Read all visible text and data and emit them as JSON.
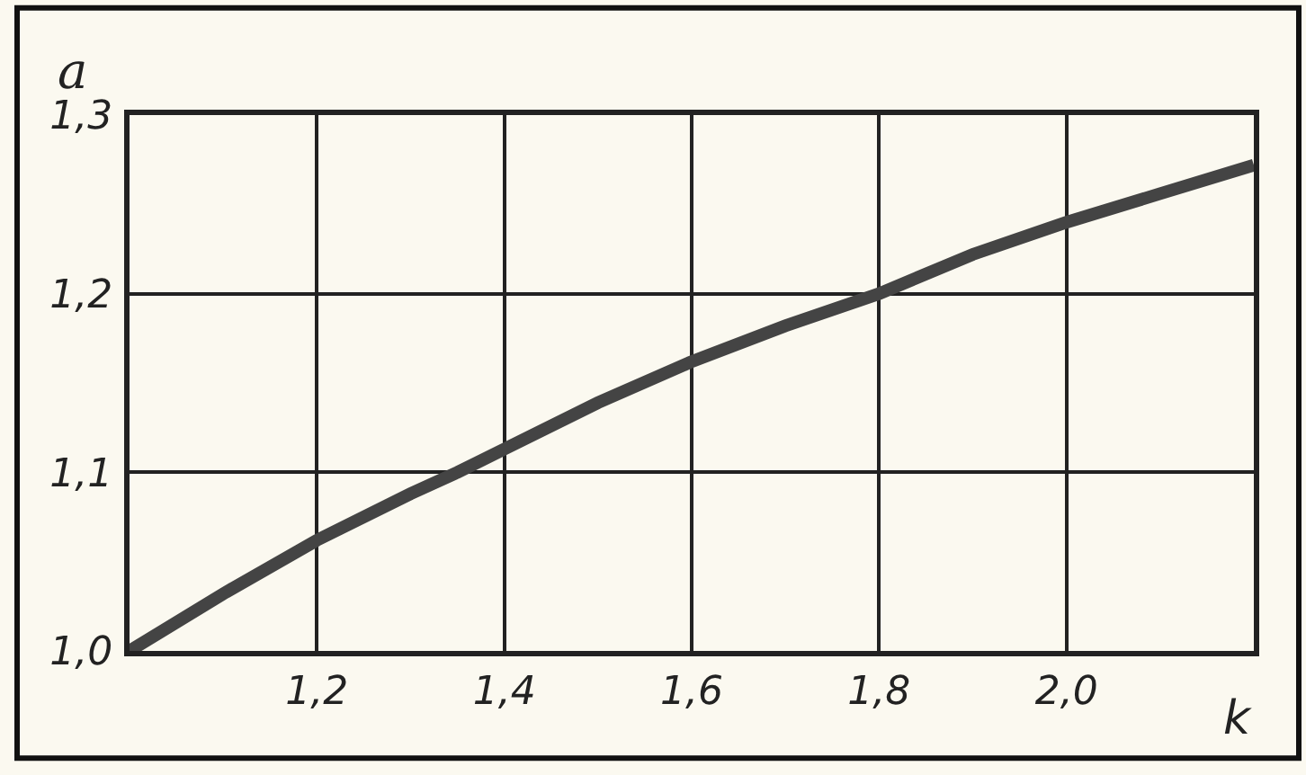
{
  "chart_data": {
    "type": "line",
    "xlabel": "k",
    "ylabel": "a",
    "x": [
      1.0,
      1.1,
      1.2,
      1.3,
      1.35,
      1.4,
      1.5,
      1.6,
      1.7,
      1.8,
      1.9,
      2.0,
      2.1,
      2.2
    ],
    "series": [
      {
        "color": "#444444",
        "values": [
          1.0,
          1.032,
          1.062,
          1.088,
          1.1,
          1.113,
          1.139,
          1.162,
          1.182,
          1.2,
          1.222,
          1.24,
          1.256,
          1.272
        ]
      }
    ],
    "xlim": [
      1.0,
      2.2
    ],
    "ylim": [
      1.0,
      1.3
    ],
    "xticks": [
      {
        "value": 1.2,
        "label": "1,2"
      },
      {
        "value": 1.4,
        "label": "1,4"
      },
      {
        "value": 1.6,
        "label": "1,6"
      },
      {
        "value": 1.8,
        "label": "1,8"
      },
      {
        "value": 2.0,
        "label": "2,0"
      }
    ],
    "yticks": [
      {
        "value": 1.0,
        "label": "1,0"
      },
      {
        "value": 1.1,
        "label": "1,1"
      },
      {
        "value": 1.2,
        "label": "1,2"
      },
      {
        "value": 1.3,
        "label": "1,3"
      }
    ],
    "grid": true,
    "marker": "none",
    "line_style": "solid"
  }
}
